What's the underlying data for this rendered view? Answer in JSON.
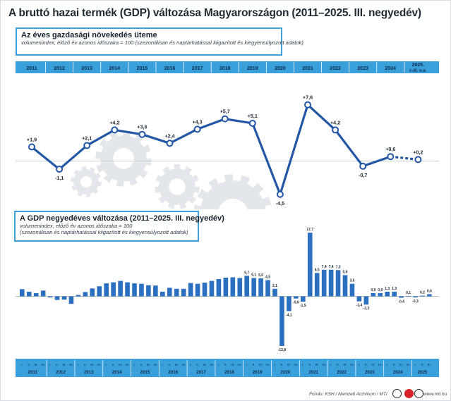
{
  "header": {
    "title": "A bruttó hazai termék (GDP) változása Magyarországon (2011–2025. III. negyedév)"
  },
  "chart_data": [
    {
      "type": "line",
      "title": "Az éves gazdasági növekedés üteme",
      "subtitle": "volumenindex, előző év azonos időszaka = 100 (szezonálisan és naptárhatással kiigazított és kiegyensúlyozott adatok)",
      "categories": [
        "2011",
        "2012",
        "2013",
        "2014",
        "2015",
        "2016",
        "2017",
        "2018",
        "2019",
        "2020",
        "2021",
        "2022",
        "2023",
        "2024",
        "2025."
      ],
      "last_category_sub": "I–III. n.é.",
      "labels": [
        "+1,9",
        "-1,1",
        "+2,1",
        "+4,2",
        "+3,6",
        "+2,4",
        "+4,3",
        "+5,7",
        "+5,1",
        "-4,5",
        "+7,6",
        "+4,2",
        "-0,7",
        "+0,6",
        "+0,2"
      ],
      "values": [
        1.9,
        -1.1,
        2.1,
        4.2,
        3.6,
        2.4,
        4.3,
        5.7,
        5.1,
        -4.5,
        7.6,
        4.2,
        -0.7,
        0.6,
        0.2
      ],
      "dashed_last_segment": true,
      "colors": {
        "header_band": "#3aa0db",
        "line": "#2357a6",
        "zero_line": "#c9d1d8"
      }
    },
    {
      "type": "bar",
      "title": "A GDP negyedéves változása (2011–2025. III. negyedév)",
      "subtitle_lines": [
        "volumenindex, előző év azonos időszaka = 100",
        "(szezonálisan és naptárhatással kiigazított és kiegyensúlyozott adatok)"
      ],
      "quarter_labels": [
        "I.",
        "II.",
        "III.",
        "IV."
      ],
      "years": [
        "2011",
        "2012",
        "2013",
        "2014",
        "2015",
        "2016",
        "2017",
        "2018",
        "2019",
        "2020",
        "2021",
        "2022",
        "2023",
        "2024",
        "2025"
      ],
      "values": [
        2.0,
        1.3,
        0.9,
        1.6,
        -0.3,
        -1.0,
        -0.9,
        -2.1,
        0.4,
        1.2,
        2.2,
        2.8,
        3.6,
        3.9,
        4.3,
        3.9,
        3.6,
        3.5,
        3.1,
        3.0,
        1.3,
        2.4,
        2.1,
        2.1,
        3.7,
        3.5,
        3.8,
        4.3,
        4.8,
        5.2,
        5.3,
        5.1,
        5.7,
        5.1,
        5.0,
        4.5,
        2.1,
        -13.8,
        -4.1,
        -0.6,
        -1.5,
        17.7,
        6.5,
        7.4,
        7.4,
        7.3,
        5.9,
        3.5,
        -1.4,
        -2.3,
        0.9,
        0.9,
        1.3,
        1.3,
        -0.4,
        0.1,
        -0.3,
        0.2,
        0.6
      ],
      "value_labels": [
        [
          32,
          "5,7"
        ],
        [
          33,
          "5,1"
        ],
        [
          34,
          "5,0"
        ],
        [
          35,
          "4,5"
        ],
        [
          36,
          "2,1"
        ],
        [
          37,
          "-13,8"
        ],
        [
          38,
          "-4,1"
        ],
        [
          39,
          "-0,6"
        ],
        [
          40,
          "-1,5"
        ],
        [
          41,
          "17,7"
        ],
        [
          42,
          "6,5"
        ],
        [
          43,
          "7,4"
        ],
        [
          44,
          "7,4"
        ],
        [
          45,
          "7,3"
        ],
        [
          46,
          "5,9"
        ],
        [
          47,
          "3,5"
        ],
        [
          48,
          "-1,4"
        ],
        [
          49,
          "-2,3"
        ],
        [
          50,
          "0,9"
        ],
        [
          51,
          "0,9"
        ],
        [
          52,
          "1,3"
        ],
        [
          53,
          "1,3"
        ],
        [
          54,
          "-0,4"
        ],
        [
          55,
          "0,1"
        ],
        [
          56,
          "-0,3"
        ],
        [
          57,
          "0,2"
        ],
        [
          58,
          "0,6"
        ]
      ],
      "colors": {
        "bars": "#2a6fc0",
        "axis_band": "#3aa0db",
        "zero_line": "#9aa6b0"
      }
    }
  ],
  "footer": {
    "source": "Forrás: KSH / Nemzeti Archívum / MTI",
    "site": "www.mti.hu"
  }
}
